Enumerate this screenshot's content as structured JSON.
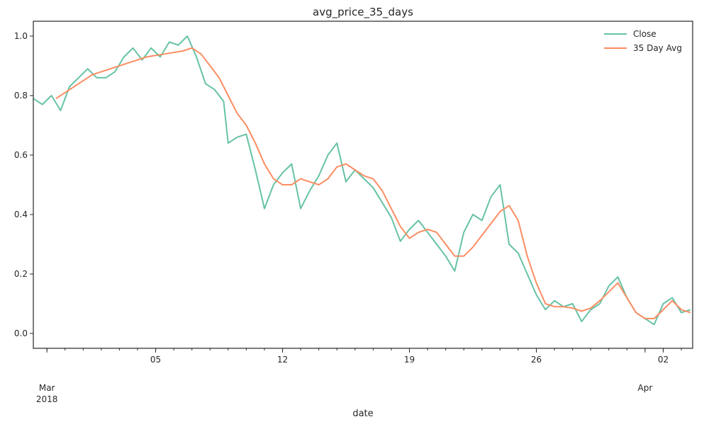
{
  "chart_data": {
    "type": "line",
    "title": "avg_price_35_days",
    "xlabel": "date",
    "ylabel": "",
    "xlim": [
      "2018-02-26T06:00",
      "2018-04-03T15:00"
    ],
    "ylim": [
      -0.05,
      1.05
    ],
    "grid": false,
    "legend_position": "top-right",
    "x_ticks": [
      {
        "x": "2018-02-27",
        "label": "Mar",
        "sublabel": "2018"
      },
      {
        "x": "2018-03-05",
        "label": "05",
        "sublabel": ""
      },
      {
        "x": "2018-03-12",
        "label": "12",
        "sublabel": ""
      },
      {
        "x": "2018-03-19",
        "label": "19",
        "sublabel": ""
      },
      {
        "x": "2018-03-26",
        "label": "26",
        "sublabel": ""
      },
      {
        "x": "2018-04-01",
        "label": "Apr",
        "sublabel": ""
      },
      {
        "x": "2018-04-02",
        "label": "02",
        "sublabel": ""
      }
    ],
    "y_ticks": [
      {
        "y": 0.0,
        "label": "0.0"
      },
      {
        "y": 0.2,
        "label": "0.2"
      },
      {
        "y": 0.4,
        "label": "0.4"
      },
      {
        "y": 0.6,
        "label": "0.6"
      },
      {
        "y": 0.8,
        "label": "0.8"
      },
      {
        "y": 1.0,
        "label": "1.0"
      }
    ],
    "series": [
      {
        "name": "Close",
        "color": "#66c2a5",
        "points": [
          [
            "2018-02-26T06:00",
            0.79
          ],
          [
            "2018-02-26T18:00",
            0.77
          ],
          [
            "2018-02-27T06:00",
            0.8
          ],
          [
            "2018-02-27T18:00",
            0.75
          ],
          [
            "2018-02-28T06:00",
            0.83
          ],
          [
            "2018-02-28T18:00",
            0.86
          ],
          [
            "2018-03-01T06:00",
            0.89
          ],
          [
            "2018-03-01T18:00",
            0.86
          ],
          [
            "2018-03-02T06:00",
            0.86
          ],
          [
            "2018-03-02T18:00",
            0.88
          ],
          [
            "2018-03-03T06:00",
            0.93
          ],
          [
            "2018-03-03T18:00",
            0.96
          ],
          [
            "2018-03-04T06:00",
            0.92
          ],
          [
            "2018-03-04T18:00",
            0.96
          ],
          [
            "2018-03-05T06:00",
            0.93
          ],
          [
            "2018-03-05T18:00",
            0.98
          ],
          [
            "2018-03-06T06:00",
            0.97
          ],
          [
            "2018-03-06T18:00",
            1.0
          ],
          [
            "2018-03-07T06:00",
            0.93
          ],
          [
            "2018-03-07T18:00",
            0.84
          ],
          [
            "2018-03-08T06:00",
            0.82
          ],
          [
            "2018-03-08T18:00",
            0.78
          ],
          [
            "2018-03-09T00:00",
            0.64
          ],
          [
            "2018-03-09T12:00",
            0.66
          ],
          [
            "2018-03-10T00:00",
            0.67
          ],
          [
            "2018-03-10T12:00",
            0.55
          ],
          [
            "2018-03-11T00:00",
            0.42
          ],
          [
            "2018-03-11T12:00",
            0.5
          ],
          [
            "2018-03-12T00:00",
            0.54
          ],
          [
            "2018-03-12T12:00",
            0.57
          ],
          [
            "2018-03-13T00:00",
            0.42
          ],
          [
            "2018-03-13T12:00",
            0.48
          ],
          [
            "2018-03-14T00:00",
            0.53
          ],
          [
            "2018-03-14T12:00",
            0.6
          ],
          [
            "2018-03-15T00:00",
            0.64
          ],
          [
            "2018-03-15T12:00",
            0.51
          ],
          [
            "2018-03-16T00:00",
            0.55
          ],
          [
            "2018-03-16T12:00",
            0.52
          ],
          [
            "2018-03-17T00:00",
            0.49
          ],
          [
            "2018-03-17T12:00",
            0.44
          ],
          [
            "2018-03-18T00:00",
            0.39
          ],
          [
            "2018-03-18T12:00",
            0.31
          ],
          [
            "2018-03-19T00:00",
            0.35
          ],
          [
            "2018-03-19T12:00",
            0.38
          ],
          [
            "2018-03-20T00:00",
            0.34
          ],
          [
            "2018-03-20T12:00",
            0.3
          ],
          [
            "2018-03-21T00:00",
            0.26
          ],
          [
            "2018-03-21T12:00",
            0.21
          ],
          [
            "2018-03-22T00:00",
            0.34
          ],
          [
            "2018-03-22T12:00",
            0.4
          ],
          [
            "2018-03-23T00:00",
            0.38
          ],
          [
            "2018-03-23T12:00",
            0.46
          ],
          [
            "2018-03-24T00:00",
            0.5
          ],
          [
            "2018-03-24T12:00",
            0.3
          ],
          [
            "2018-03-25T00:00",
            0.27
          ],
          [
            "2018-03-25T12:00",
            0.2
          ],
          [
            "2018-03-26T00:00",
            0.13
          ],
          [
            "2018-03-26T12:00",
            0.08
          ],
          [
            "2018-03-27T00:00",
            0.11
          ],
          [
            "2018-03-27T12:00",
            0.09
          ],
          [
            "2018-03-28T00:00",
            0.1
          ],
          [
            "2018-03-28T12:00",
            0.04
          ],
          [
            "2018-03-29T00:00",
            0.08
          ],
          [
            "2018-03-29T12:00",
            0.1
          ],
          [
            "2018-03-30T00:00",
            0.16
          ],
          [
            "2018-03-30T12:00",
            0.19
          ],
          [
            "2018-03-31T00:00",
            0.12
          ],
          [
            "2018-03-31T12:00",
            0.07
          ],
          [
            "2018-04-01T00:00",
            0.05
          ],
          [
            "2018-04-01T12:00",
            0.03
          ],
          [
            "2018-04-02T00:00",
            0.1
          ],
          [
            "2018-04-02T12:00",
            0.12
          ],
          [
            "2018-04-03T00:00",
            0.07
          ],
          [
            "2018-04-03T12:00",
            0.08
          ]
        ]
      },
      {
        "name": "35 Day Avg",
        "color": "#fc8d62",
        "points": [
          [
            "2018-02-27T12:00",
            0.79
          ],
          [
            "2018-02-28T12:00",
            0.83
          ],
          [
            "2018-03-01T12:00",
            0.87
          ],
          [
            "2018-03-02T12:00",
            0.89
          ],
          [
            "2018-03-03T12:00",
            0.91
          ],
          [
            "2018-03-04T12:00",
            0.93
          ],
          [
            "2018-03-05T12:00",
            0.94
          ],
          [
            "2018-03-06T12:00",
            0.95
          ],
          [
            "2018-03-07T00:00",
            0.96
          ],
          [
            "2018-03-07T12:00",
            0.94
          ],
          [
            "2018-03-08T00:00",
            0.9
          ],
          [
            "2018-03-08T12:00",
            0.86
          ],
          [
            "2018-03-09T00:00",
            0.8
          ],
          [
            "2018-03-09T12:00",
            0.74
          ],
          [
            "2018-03-10T00:00",
            0.7
          ],
          [
            "2018-03-10T12:00",
            0.64
          ],
          [
            "2018-03-11T00:00",
            0.57
          ],
          [
            "2018-03-11T12:00",
            0.52
          ],
          [
            "2018-03-12T00:00",
            0.5
          ],
          [
            "2018-03-12T12:00",
            0.5
          ],
          [
            "2018-03-13T00:00",
            0.52
          ],
          [
            "2018-03-13T12:00",
            0.51
          ],
          [
            "2018-03-14T00:00",
            0.5
          ],
          [
            "2018-03-14T12:00",
            0.52
          ],
          [
            "2018-03-15T00:00",
            0.56
          ],
          [
            "2018-03-15T12:00",
            0.57
          ],
          [
            "2018-03-16T00:00",
            0.55
          ],
          [
            "2018-03-16T12:00",
            0.53
          ],
          [
            "2018-03-17T00:00",
            0.52
          ],
          [
            "2018-03-17T12:00",
            0.48
          ],
          [
            "2018-03-18T00:00",
            0.42
          ],
          [
            "2018-03-18T12:00",
            0.36
          ],
          [
            "2018-03-19T00:00",
            0.32
          ],
          [
            "2018-03-19T12:00",
            0.34
          ],
          [
            "2018-03-20T00:00",
            0.35
          ],
          [
            "2018-03-20T12:00",
            0.34
          ],
          [
            "2018-03-21T00:00",
            0.3
          ],
          [
            "2018-03-21T12:00",
            0.26
          ],
          [
            "2018-03-22T00:00",
            0.26
          ],
          [
            "2018-03-22T12:00",
            0.29
          ],
          [
            "2018-03-23T00:00",
            0.33
          ],
          [
            "2018-03-23T12:00",
            0.37
          ],
          [
            "2018-03-24T00:00",
            0.41
          ],
          [
            "2018-03-24T12:00",
            0.43
          ],
          [
            "2018-03-25T00:00",
            0.38
          ],
          [
            "2018-03-25T12:00",
            0.26
          ],
          [
            "2018-03-26T00:00",
            0.17
          ],
          [
            "2018-03-26T12:00",
            0.1
          ],
          [
            "2018-03-27T00:00",
            0.09
          ],
          [
            "2018-03-27T12:00",
            0.09
          ],
          [
            "2018-03-28T00:00",
            0.085
          ],
          [
            "2018-03-28T12:00",
            0.075
          ],
          [
            "2018-03-29T00:00",
            0.085
          ],
          [
            "2018-03-29T12:00",
            0.11
          ],
          [
            "2018-03-30T00:00",
            0.14
          ],
          [
            "2018-03-30T12:00",
            0.17
          ],
          [
            "2018-03-31T00:00",
            0.12
          ],
          [
            "2018-03-31T12:00",
            0.07
          ],
          [
            "2018-04-01T00:00",
            0.05
          ],
          [
            "2018-04-01T12:00",
            0.05
          ],
          [
            "2018-04-02T00:00",
            0.08
          ],
          [
            "2018-04-02T12:00",
            0.11
          ],
          [
            "2018-04-03T00:00",
            0.08
          ],
          [
            "2018-04-03T12:00",
            0.07
          ]
        ]
      }
    ]
  }
}
